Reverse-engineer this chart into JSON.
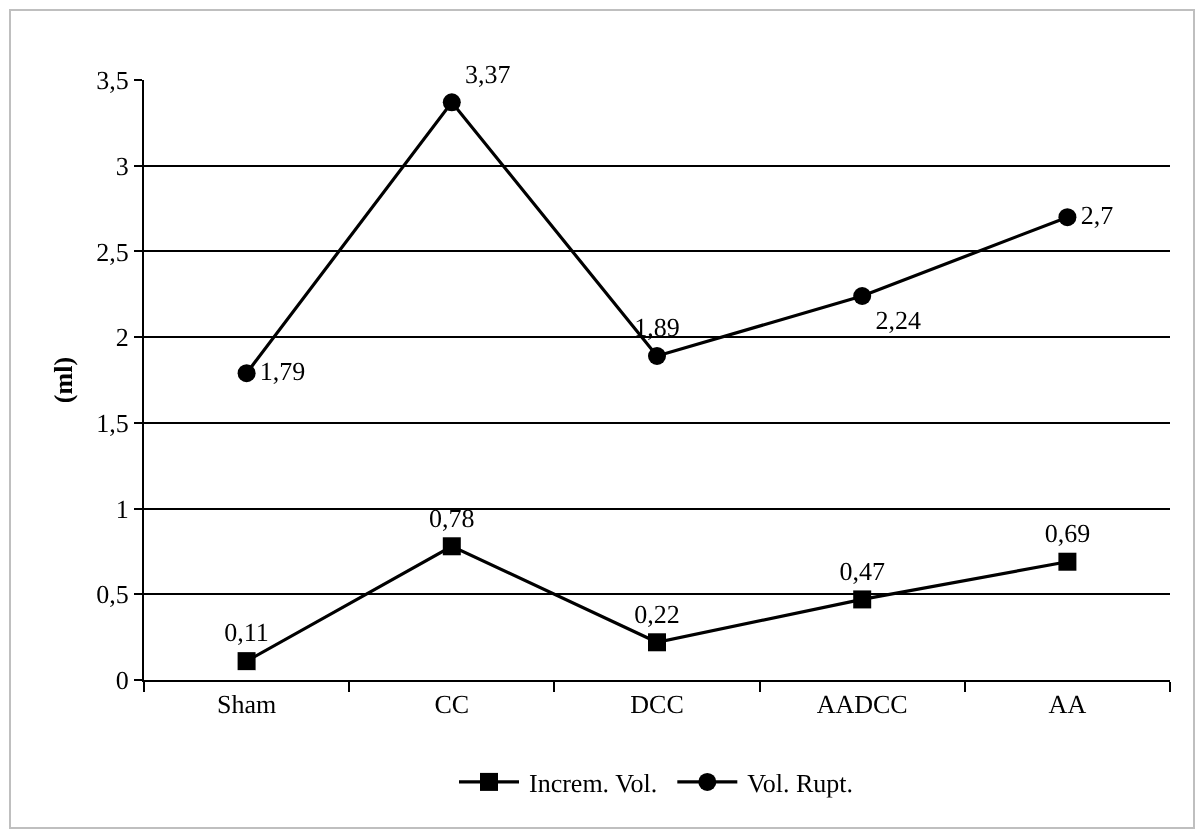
{
  "chart_data": {
    "type": "line",
    "ylabel": "(ml)",
    "categories": [
      "Sham",
      "CC",
      "DCC",
      "AADCC",
      "AA"
    ],
    "series": [
      {
        "name": "Increm. Vol.",
        "color": "#000000",
        "marker": "square",
        "values": [
          0.11,
          0.78,
          0.22,
          0.47,
          0.69
        ],
        "value_labels": [
          "0,11",
          "0,78",
          "0,22",
          "0,47",
          "0,69"
        ]
      },
      {
        "name": "Vol. Rupt.",
        "color": "#000000",
        "marker": "circle",
        "values": [
          1.79,
          3.37,
          1.89,
          2.24,
          2.7
        ],
        "value_labels": [
          "1,79",
          "3,37",
          "1,89",
          "2,24",
          "2,7"
        ]
      }
    ],
    "ylim": [
      0,
      3.5
    ],
    "yticks": [
      0,
      {
        "value": 0.5,
        "label": "0,5"
      },
      1,
      {
        "value": 1.5,
        "label": "1,5"
      },
      2,
      {
        "value": 2.5,
        "label": "2,5"
      },
      3,
      {
        "value": 3.5,
        "label": "3,5"
      }
    ],
    "grid": "y",
    "legend": "bottom",
    "line_style": "solid"
  }
}
